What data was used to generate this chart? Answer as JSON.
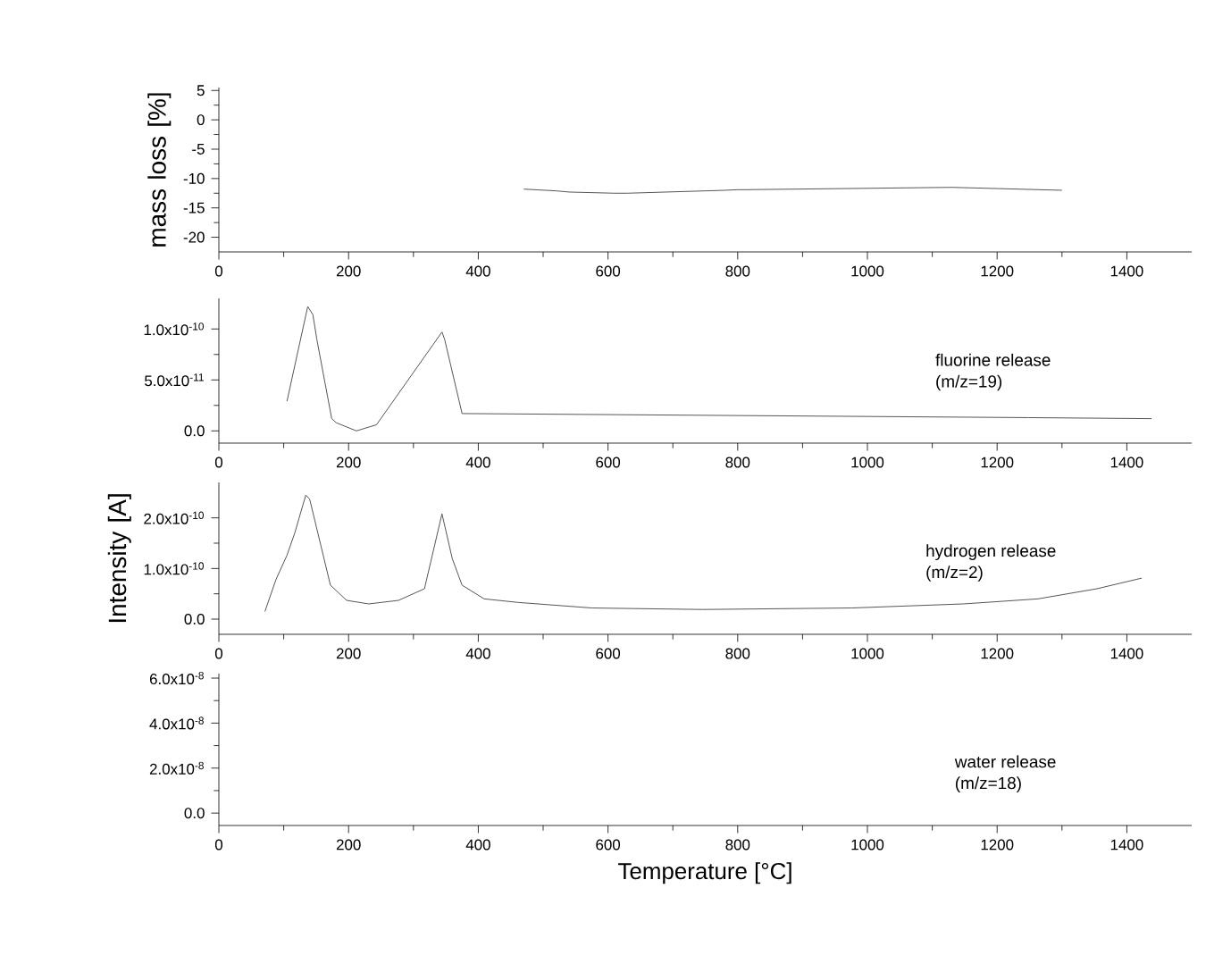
{
  "chart_data": [
    {
      "type": "line",
      "ylabel": "mass loss [%]",
      "xlim": [
        0,
        1500
      ],
      "xticks": [
        0,
        200,
        400,
        600,
        800,
        1000,
        1200,
        1400
      ],
      "ylim": [
        -22.5,
        5.5
      ],
      "yticks": [
        -20,
        -15,
        -10,
        -5,
        0,
        5
      ],
      "marker": "none",
      "line_style": "solid",
      "series": [
        {
          "color": "#555555",
          "x": [
            470,
            520,
            540,
            610,
            630,
            780,
            800,
            810,
            1130,
            1300
          ],
          "values": [
            -11.8,
            -12.1,
            -12.3,
            -12.5,
            -12.5,
            -12.0,
            -11.9,
            -11.9,
            -11.5,
            -12.0
          ]
        }
      ]
    },
    {
      "type": "line",
      "annotations": [
        "fluorine release",
        "(m/z=19)"
      ],
      "xlim": [
        0,
        1500
      ],
      "xticks": [
        0,
        200,
        400,
        600,
        800,
        1000,
        1200,
        1400
      ],
      "ylim": [
        -1.2e-11,
        1.3e-10
      ],
      "yticks": [
        {
          "value": 0,
          "label": "0.0"
        },
        {
          "value": 5e-11,
          "label": "5.0x10$^{-11}$"
        },
        {
          "value": 1e-10,
          "label": "1.0x10$^{-10}$"
        }
      ],
      "marker": "none",
      "line_style": "solid",
      "series": [
        {
          "color": "#555555",
          "x": [
            105,
            137,
            145,
            151,
            174,
            181,
            212,
            243,
            344,
            348,
            375,
            1249,
            1438
          ],
          "values": [
            2.9e-11,
            1.22e-10,
            1.14e-10,
            9e-11,
            1.2e-11,
            8e-12,
            0,
            6e-12,
            9.7e-11,
            9e-11,
            1.7e-11,
            1.3e-11,
            1.2e-11
          ]
        }
      ]
    },
    {
      "type": "line",
      "ylabel": "Intensity [A]",
      "annotations": [
        "hydrogen release",
        "(m/z=2)"
      ],
      "xlim": [
        0,
        1500
      ],
      "xticks": [
        0,
        200,
        400,
        600,
        800,
        1000,
        1200,
        1400
      ],
      "ylim": [
        -3e-11,
        2.7e-10
      ],
      "yticks": [
        {
          "value": 0,
          "label": "0.0"
        },
        {
          "value": 1e-10,
          "label": "1.0x10$^{-10}$"
        },
        {
          "value": 2e-10,
          "label": "2.0x10$^{-10}$"
        }
      ],
      "marker": "none",
      "line_style": "solid",
      "series": [
        {
          "color": "#555555",
          "x": [
            71,
            88,
            105,
            117,
            134,
            140,
            172,
            197,
            231,
            277,
            317,
            344,
            360,
            375,
            409,
            461,
            575,
            746,
            976,
            1148,
            1263,
            1354,
            1423
          ],
          "values": [
            1.5e-11,
            7.8e-11,
            1.26e-10,
            1.7e-10,
            2.45e-10,
            2.37e-10,
            6.7e-11,
            3.7e-11,
            3e-11,
            3.7e-11,
            6e-11,
            2.08e-10,
            1.19e-10,
            6.7e-11,
            4e-11,
            3.3e-11,
            2.2e-11,
            1.9e-11,
            2.2e-11,
            3e-11,
            4e-11,
            6e-11,
            8.1e-11
          ]
        }
      ]
    },
    {
      "type": "line",
      "xlabel": "Temperature [°C]",
      "annotations": [
        "water release",
        "(m/z=18)"
      ],
      "xlim": [
        0,
        1500
      ],
      "xticks": [
        0,
        200,
        400,
        600,
        800,
        1000,
        1200,
        1400
      ],
      "ylim": [
        -5.5e-09,
        6.2e-08
      ],
      "yticks": [
        {
          "value": 0,
          "label": "0.0"
        },
        {
          "value": 2e-08,
          "label": "2.0x10$^{-8}$"
        },
        {
          "value": 4e-08,
          "label": "4.0x10$^{-8}$"
        },
        {
          "value": 6e-08,
          "label": "6.0x10$^{-8}$"
        }
      ]
    }
  ]
}
